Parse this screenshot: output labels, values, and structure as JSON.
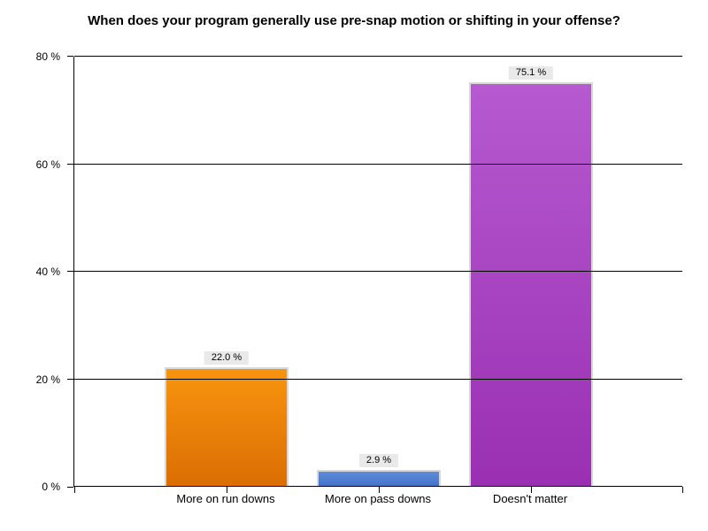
{
  "page": {
    "background": "#FFFFFF"
  },
  "chart_data": {
    "type": "bar",
    "title": "When does your program generally use pre-snap motion or shifting in your offense?",
    "categories": [
      "More on run downs",
      "More on pass downs",
      "Doesn't matter"
    ],
    "values": [
      22.0,
      2.9,
      75.1
    ],
    "value_labels": [
      "22.0 %",
      "2.9 %",
      "75.1 %"
    ],
    "xlabel": "",
    "ylabel": "",
    "ylim": [
      0,
      80
    ],
    "ytick_interval": 20,
    "ytick_labels": [
      "0 %",
      "20 %",
      "40 %",
      "60 %",
      "80 %"
    ],
    "grid": true,
    "legend": false,
    "styles": {
      "bar_gradients": [
        {
          "name": "orange",
          "top": "#F8940F",
          "bottom": "#DB6E04"
        },
        {
          "name": "blue",
          "top": "#5E8CDA",
          "bottom": "#4472C8"
        },
        {
          "name": "purple",
          "top": "#B65AD0",
          "bottom": "#9A2FB2"
        }
      ],
      "bar_border_color": "#D8D8D8",
      "value_label_bg": "#E9E9E9",
      "axis_color": "#000000",
      "grid_color": "#000000",
      "title_color": "#000000"
    }
  }
}
